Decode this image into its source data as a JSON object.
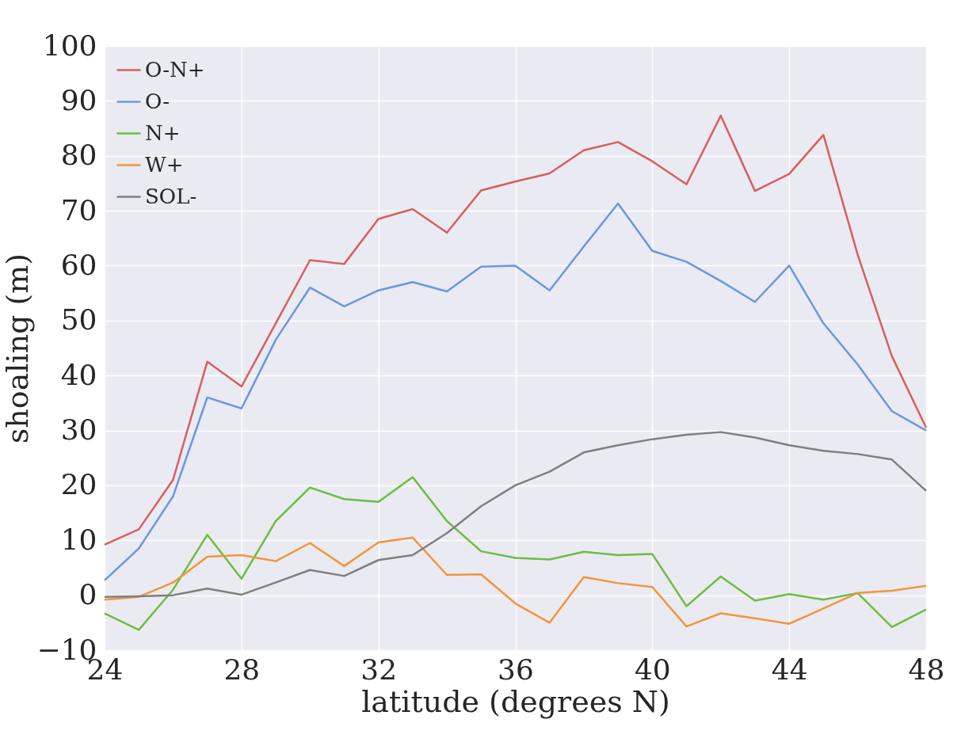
{
  "chart_data": {
    "type": "line",
    "xlabel": "latitude (degrees N)",
    "ylabel": "shoaling (m)",
    "x": [
      24,
      25,
      26,
      27,
      28,
      29,
      30,
      31,
      32,
      33,
      34,
      35,
      36,
      37,
      38,
      39,
      40,
      41,
      42,
      43,
      44,
      45,
      46,
      47,
      48
    ],
    "series": [
      {
        "name": "O-N+",
        "color": "#d65f5f",
        "values": [
          9.2,
          12,
          21,
          42.5,
          38,
          49.5,
          61,
          60.3,
          68.5,
          70.3,
          66,
          73.7,
          75.3,
          76.8,
          81,
          82.5,
          79,
          74.8,
          87.3,
          73.6,
          76.7,
          83.8,
          62,
          43.5,
          30.5
        ]
      },
      {
        "name": "O-",
        "color": "#6a98dc",
        "values": [
          2.7,
          8.5,
          18,
          36,
          34,
          46.5,
          56,
          52.6,
          55.5,
          57,
          55.3,
          59.8,
          60,
          55.5,
          63.5,
          71.3,
          62.7,
          60.7,
          57.2,
          53.4,
          60,
          49.5,
          42,
          33.5,
          30
        ]
      },
      {
        "name": "N+",
        "color": "#6abf40",
        "values": [
          -3.3,
          -6.3,
          1,
          11,
          3,
          13.5,
          19.6,
          17.5,
          17,
          21.5,
          13.5,
          8,
          6.8,
          6.5,
          7.9,
          7.3,
          7.5,
          -2,
          3.4,
          -1,
          0.2,
          -0.8,
          0.4,
          -5.8,
          -2.6
        ]
      },
      {
        "name": "W+",
        "color": "#f0963c",
        "values": [
          -0.8,
          -0.3,
          2.3,
          7,
          7.3,
          6.2,
          9.5,
          5.3,
          9.6,
          10.5,
          3.7,
          3.8,
          -1.5,
          -5,
          3.3,
          2.2,
          1.5,
          -5.7,
          -3.3,
          -4.2,
          -5.2,
          -2.4,
          0.4,
          0.8,
          1.7
        ]
      },
      {
        "name": "SOL-",
        "color": "#7f7f7f",
        "values": [
          -0.3,
          -0.2,
          0,
          1.2,
          0.1,
          2.3,
          4.6,
          3.5,
          6.4,
          7.3,
          11.3,
          16.2,
          20,
          22.5,
          26,
          27.3,
          28.4,
          29.2,
          29.7,
          28.7,
          27.3,
          26.3,
          25.7,
          24.7,
          19
        ]
      }
    ],
    "xlim": [
      24,
      48
    ],
    "xticks": [
      24,
      28,
      32,
      36,
      40,
      44,
      48
    ],
    "ylim": [
      -10,
      100
    ],
    "yticks": [
      -10,
      0,
      10,
      20,
      30,
      40,
      50,
      60,
      70,
      80,
      90,
      100
    ],
    "grid": true,
    "legend": "top left",
    "marker": "none",
    "line_style": "solid"
  }
}
